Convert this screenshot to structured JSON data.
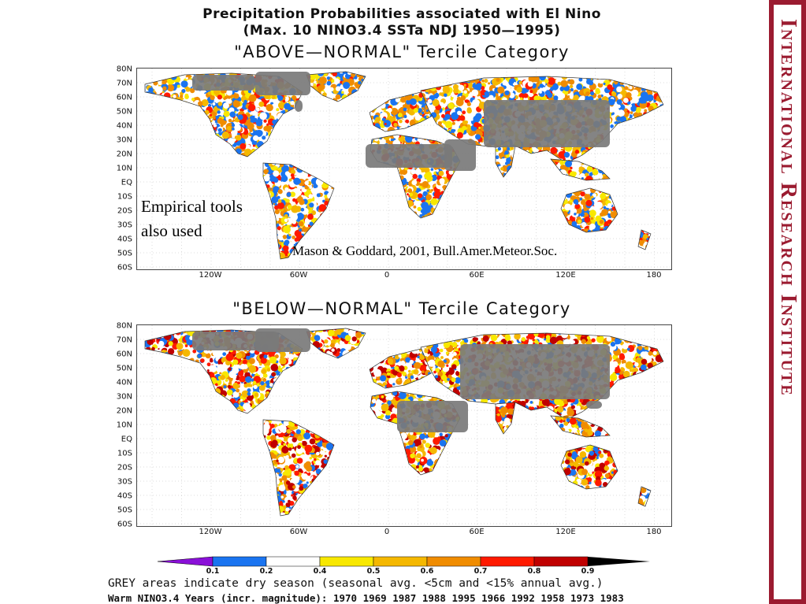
{
  "title": {
    "line1": "Precipitation Probabilities associated with El Nino",
    "line2": "(Max. 10 NINO3.4 SSTa NDJ 1950—1995)"
  },
  "panels": [
    {
      "title": "\"ABOVE—NORMAL\" Tercile Category"
    },
    {
      "title": "\"BELOW—NORMAL\" Tercile Category"
    }
  ],
  "lat_ticks": [
    "80N",
    "70N",
    "60N",
    "50N",
    "40N",
    "30N",
    "20N",
    "10N",
    "EQ",
    "10S",
    "20S",
    "30S",
    "40S",
    "50S",
    "60S"
  ],
  "lon_ticks": [
    "120W",
    "60W",
    "0",
    "60E",
    "120E",
    "180"
  ],
  "annotations": {
    "empirical_line1": "Empirical tools",
    "empirical_line2": "also used",
    "citation": "Mason & Goddard, 2001, Bull.Amer.Meteor.Soc."
  },
  "colorbar": {
    "ticks": [
      "0.1",
      "0.2",
      "0.4",
      "0.5",
      "0.6",
      "0.7",
      "0.8",
      "0.9"
    ],
    "colors": [
      "#1a74f0",
      "#ffffff",
      "#f8e800",
      "#f5b800",
      "#f08c00",
      "#ff1a00",
      "#c00000"
    ],
    "low_arrow_color": "#8a10d8",
    "high_arrow_color": "#000000"
  },
  "footnotes": {
    "grey": "GREY areas indicate dry season (seasonal avg. <5cm and <15% annual avg.)",
    "warm_years": "Warm NINO3.4 Years (incr. magnitude): 1970 1969 1987 1988 1995 1966 1992 1958 1973 1983"
  },
  "sidebar": {
    "text": "International Research Institute"
  }
}
